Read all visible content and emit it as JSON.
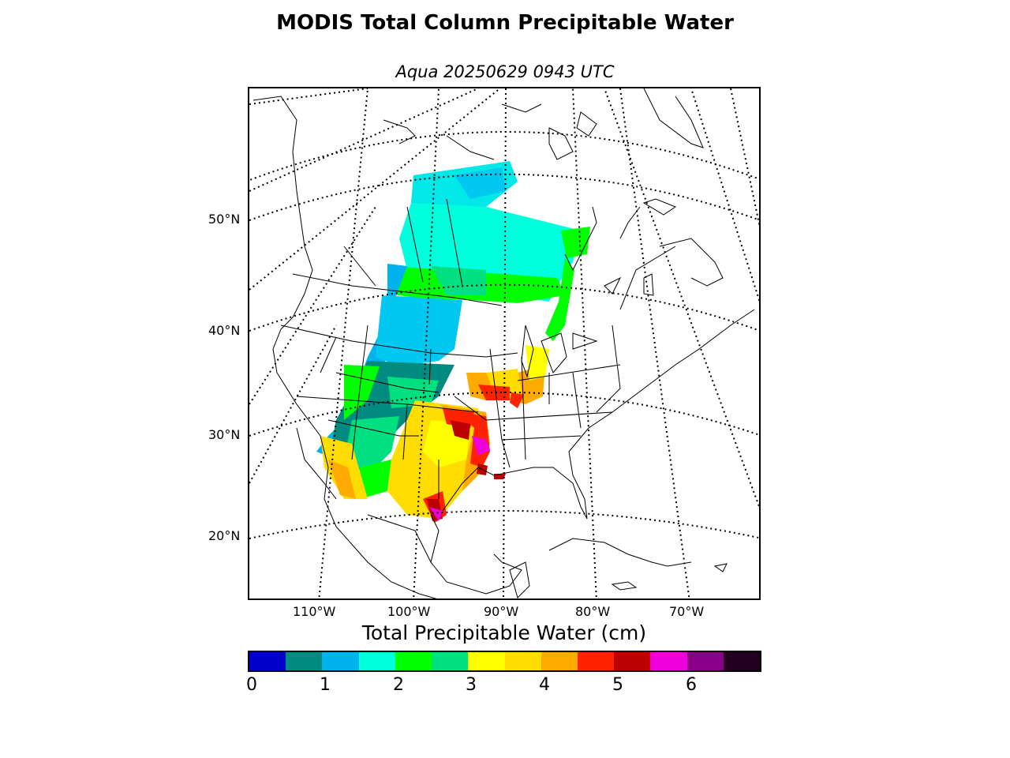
{
  "title": "MODIS Total Column Precipitable Water",
  "subtitle": "Aqua 20250629 0943 UTC",
  "map": {
    "lat_labels": [
      "50°N",
      "40°N",
      "30°N",
      "20°N"
    ],
    "lon_labels": [
      "110°W",
      "100°W",
      "90°W",
      "80°W",
      "70°W"
    ]
  },
  "colorbar": {
    "title": "Total Precipitable Water (cm)",
    "colors": [
      "#0000cd",
      "#008b80",
      "#00b2ee",
      "#00ffdd",
      "#00ff00",
      "#00e080",
      "#ffff00",
      "#ffdd00",
      "#ffaa00",
      "#ff2200",
      "#bb0000",
      "#ee00dd",
      "#880088",
      "#220022"
    ],
    "ticks": [
      "0",
      "1",
      "2",
      "3",
      "4",
      "5",
      "6"
    ]
  }
}
